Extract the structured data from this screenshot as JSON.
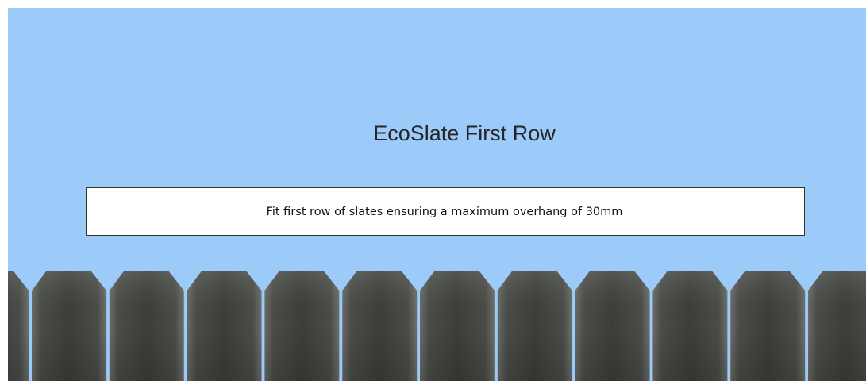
{
  "title": "EcoSlate First Row",
  "instruction": "Fit first row of slates ensuring a maximum overhang of 30mm"
}
